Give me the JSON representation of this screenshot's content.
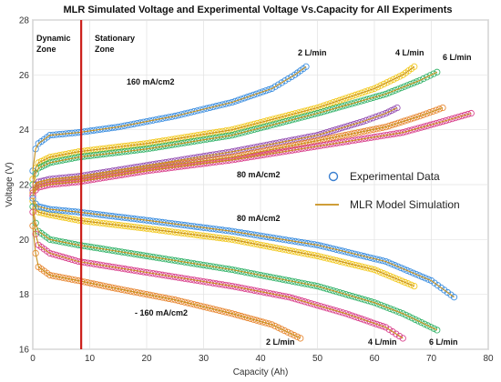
{
  "chart_data": {
    "type": "scatter",
    "title": "MLR Simulated Voltage and Experimental Voltage Vs.Capacity for All Experiments",
    "xlabel": "Capacity (Ah)",
    "ylabel": "Voltage (V)",
    "xlim": [
      0,
      80
    ],
    "ylim": [
      16,
      28
    ],
    "xticks": [
      0,
      10,
      20,
      30,
      40,
      50,
      60,
      70,
      80
    ],
    "yticks": [
      16,
      18,
      20,
      22,
      24,
      26,
      28
    ],
    "grid": true,
    "legend_position": "right",
    "legend": {
      "experimental": "Experimental Data",
      "model": "MLR Model Simulation"
    },
    "colors": {
      "model_line": "#c8901c",
      "zone_line": "#cc1f1a",
      "legend_marker": "#3a7fd0"
    },
    "zone_boundary_x": 8.5,
    "annotations": {
      "dynamic_zone": [
        "Dynamic",
        "Zone"
      ],
      "stationary_zone": [
        "Stationary",
        "Zone"
      ],
      "charge_160": "160 mA/cm2",
      "charge_80": "80 mA/cm2",
      "discharge_80": "80 mA/cm2",
      "discharge_160": "- 160 mA/cm2",
      "flow_top_2": "2 L/min",
      "flow_top_4": "4 L/min",
      "flow_top_6": "6 L/min",
      "flow_bottom_2": "2 L/min",
      "flow_bottom_4": "4 L/min",
      "flow_bottom_6": "6 L/min"
    },
    "series": [
      {
        "color": "#2e86de",
        "x": [
          0,
          0.5,
          1,
          3,
          8,
          15,
          25,
          35,
          42,
          46,
          48
        ],
        "y": [
          22.5,
          23.3,
          23.5,
          23.8,
          23.9,
          24.1,
          24.5,
          25.0,
          25.5,
          26.0,
          26.3
        ]
      },
      {
        "color": "#f1c40f",
        "x": [
          0,
          0.5,
          1,
          3,
          8,
          20,
          35,
          50,
          60,
          65,
          67
        ],
        "y": [
          22.2,
          22.6,
          22.8,
          23.0,
          23.2,
          23.5,
          24.0,
          24.8,
          25.5,
          26.0,
          26.3
        ]
      },
      {
        "color": "#27ae60",
        "x": [
          0,
          0.5,
          1,
          3,
          8,
          20,
          35,
          50,
          62,
          68,
          71
        ],
        "y": [
          22.0,
          22.4,
          22.6,
          22.8,
          23.0,
          23.3,
          23.8,
          24.6,
          25.3,
          25.8,
          26.1
        ]
      },
      {
        "color": "#8e44ad",
        "x": [
          0,
          0.5,
          1,
          3,
          8,
          20,
          35,
          50,
          58,
          62,
          64
        ],
        "y": [
          21.8,
          22.0,
          22.1,
          22.2,
          22.3,
          22.7,
          23.2,
          23.8,
          24.3,
          24.6,
          24.8
        ]
      },
      {
        "color": "#e67e22",
        "x": [
          0,
          0.5,
          1,
          3,
          8,
          20,
          35,
          50,
          62,
          68,
          72
        ],
        "y": [
          21.7,
          21.9,
          22.0,
          22.1,
          22.2,
          22.6,
          23.0,
          23.6,
          24.1,
          24.5,
          24.8
        ]
      },
      {
        "color": "#d63384",
        "x": [
          0,
          0.5,
          1,
          3,
          8,
          20,
          35,
          50,
          65,
          72,
          77
        ],
        "y": [
          21.6,
          21.8,
          21.9,
          22.0,
          22.1,
          22.5,
          22.9,
          23.4,
          23.9,
          24.3,
          24.6
        ]
      },
      {
        "color": "#f1c40f",
        "x": [
          0,
          0.5,
          1,
          3,
          8,
          20,
          35,
          50,
          60,
          67
        ],
        "y": [
          21.4,
          21.1,
          21.0,
          20.9,
          20.7,
          20.4,
          20.0,
          19.4,
          18.9,
          18.3
        ]
      },
      {
        "color": "#2e86de",
        "x": [
          0,
          0.5,
          1,
          3,
          8,
          20,
          35,
          50,
          62,
          70,
          74
        ],
        "y": [
          21.5,
          21.3,
          21.2,
          21.1,
          21.0,
          20.7,
          20.3,
          19.8,
          19.2,
          18.5,
          17.9
        ]
      },
      {
        "color": "#27ae60",
        "x": [
          0,
          0.5,
          1,
          3,
          8,
          20,
          35,
          50,
          60,
          65,
          71
        ],
        "y": [
          21.2,
          20.6,
          20.3,
          20.0,
          19.8,
          19.4,
          18.9,
          18.3,
          17.7,
          17.3,
          16.7
        ]
      },
      {
        "color": "#d63384",
        "x": [
          0,
          0.5,
          1,
          3,
          8,
          20,
          35,
          45,
          55,
          62,
          65
        ],
        "y": [
          21.0,
          20.2,
          19.8,
          19.5,
          19.2,
          18.8,
          18.3,
          17.9,
          17.3,
          16.8,
          16.4
        ]
      },
      {
        "color": "#e67e22",
        "x": [
          0,
          0.5,
          1,
          3,
          8,
          15,
          25,
          35,
          42,
          47
        ],
        "y": [
          20.5,
          19.5,
          19.0,
          18.7,
          18.5,
          18.2,
          17.8,
          17.3,
          16.9,
          16.4
        ]
      }
    ]
  }
}
